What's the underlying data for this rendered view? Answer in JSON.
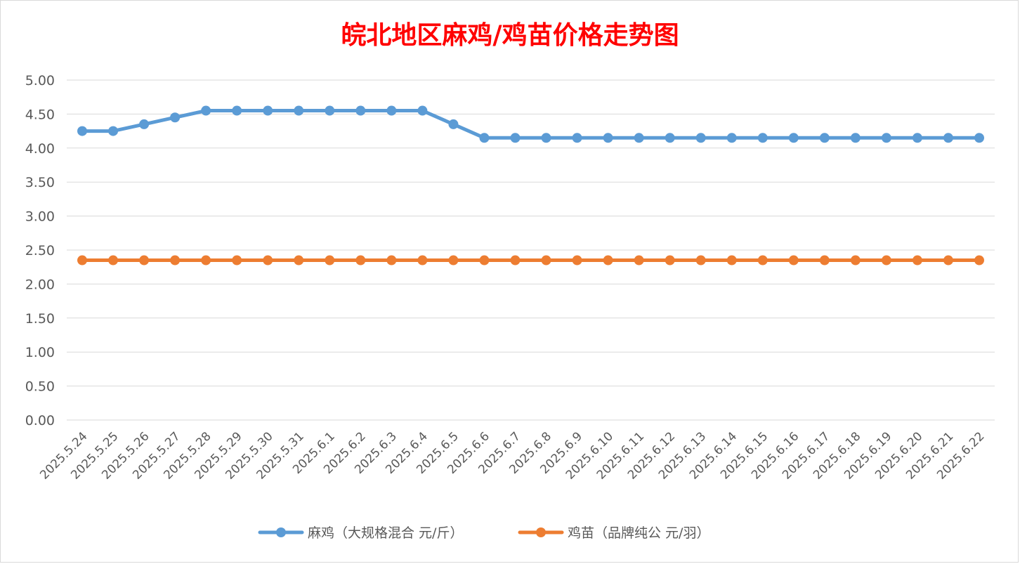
{
  "chart_data": {
    "type": "line",
    "title": "皖北地区麻鸡/鸡苗价格走势图",
    "xlabel": "",
    "ylabel": "",
    "ylim": [
      0,
      5
    ],
    "y_ticks": [
      "0.00",
      "0.50",
      "1.00",
      "1.50",
      "2.00",
      "2.50",
      "3.00",
      "3.50",
      "4.00",
      "4.50",
      "5.00"
    ],
    "grid": true,
    "legend_position": "bottom",
    "categories": [
      "2025.5.24",
      "2025.5.25",
      "2025.5.26",
      "2025.5.27",
      "2025.5.28",
      "2025.5.29",
      "2025.5.30",
      "2025.5.31",
      "2025.6.1",
      "2025.6.2",
      "2025.6.3",
      "2025.6.4",
      "2025.6.5",
      "2025.6.6",
      "2025.6.7",
      "2025.6.8",
      "2025.6.9",
      "2025.6.10",
      "2025.6.11",
      "2025.6.12",
      "2025.6.13",
      "2025.6.14",
      "2025.6.15",
      "2025.6.16",
      "2025.6.17",
      "2025.6.18",
      "2025.6.19",
      "2025.6.20",
      "2025.6.21",
      "2025.6.22"
    ],
    "series": [
      {
        "name": "麻鸡（大规格混合 元/斤）",
        "color": "#5b9bd5",
        "values": [
          4.25,
          4.25,
          4.35,
          4.45,
          4.55,
          4.55,
          4.55,
          4.55,
          4.55,
          4.55,
          4.55,
          4.55,
          4.35,
          4.15,
          4.15,
          4.15,
          4.15,
          4.15,
          4.15,
          4.15,
          4.15,
          4.15,
          4.15,
          4.15,
          4.15,
          4.15,
          4.15,
          4.15,
          4.15,
          4.15
        ]
      },
      {
        "name": "鸡苗（品牌纯公 元/羽）",
        "color": "#ed7d31",
        "values": [
          2.35,
          2.35,
          2.35,
          2.35,
          2.35,
          2.35,
          2.35,
          2.35,
          2.35,
          2.35,
          2.35,
          2.35,
          2.35,
          2.35,
          2.35,
          2.35,
          2.35,
          2.35,
          2.35,
          2.35,
          2.35,
          2.35,
          2.35,
          2.35,
          2.35,
          2.35,
          2.35,
          2.35,
          2.35,
          2.35
        ]
      }
    ]
  }
}
